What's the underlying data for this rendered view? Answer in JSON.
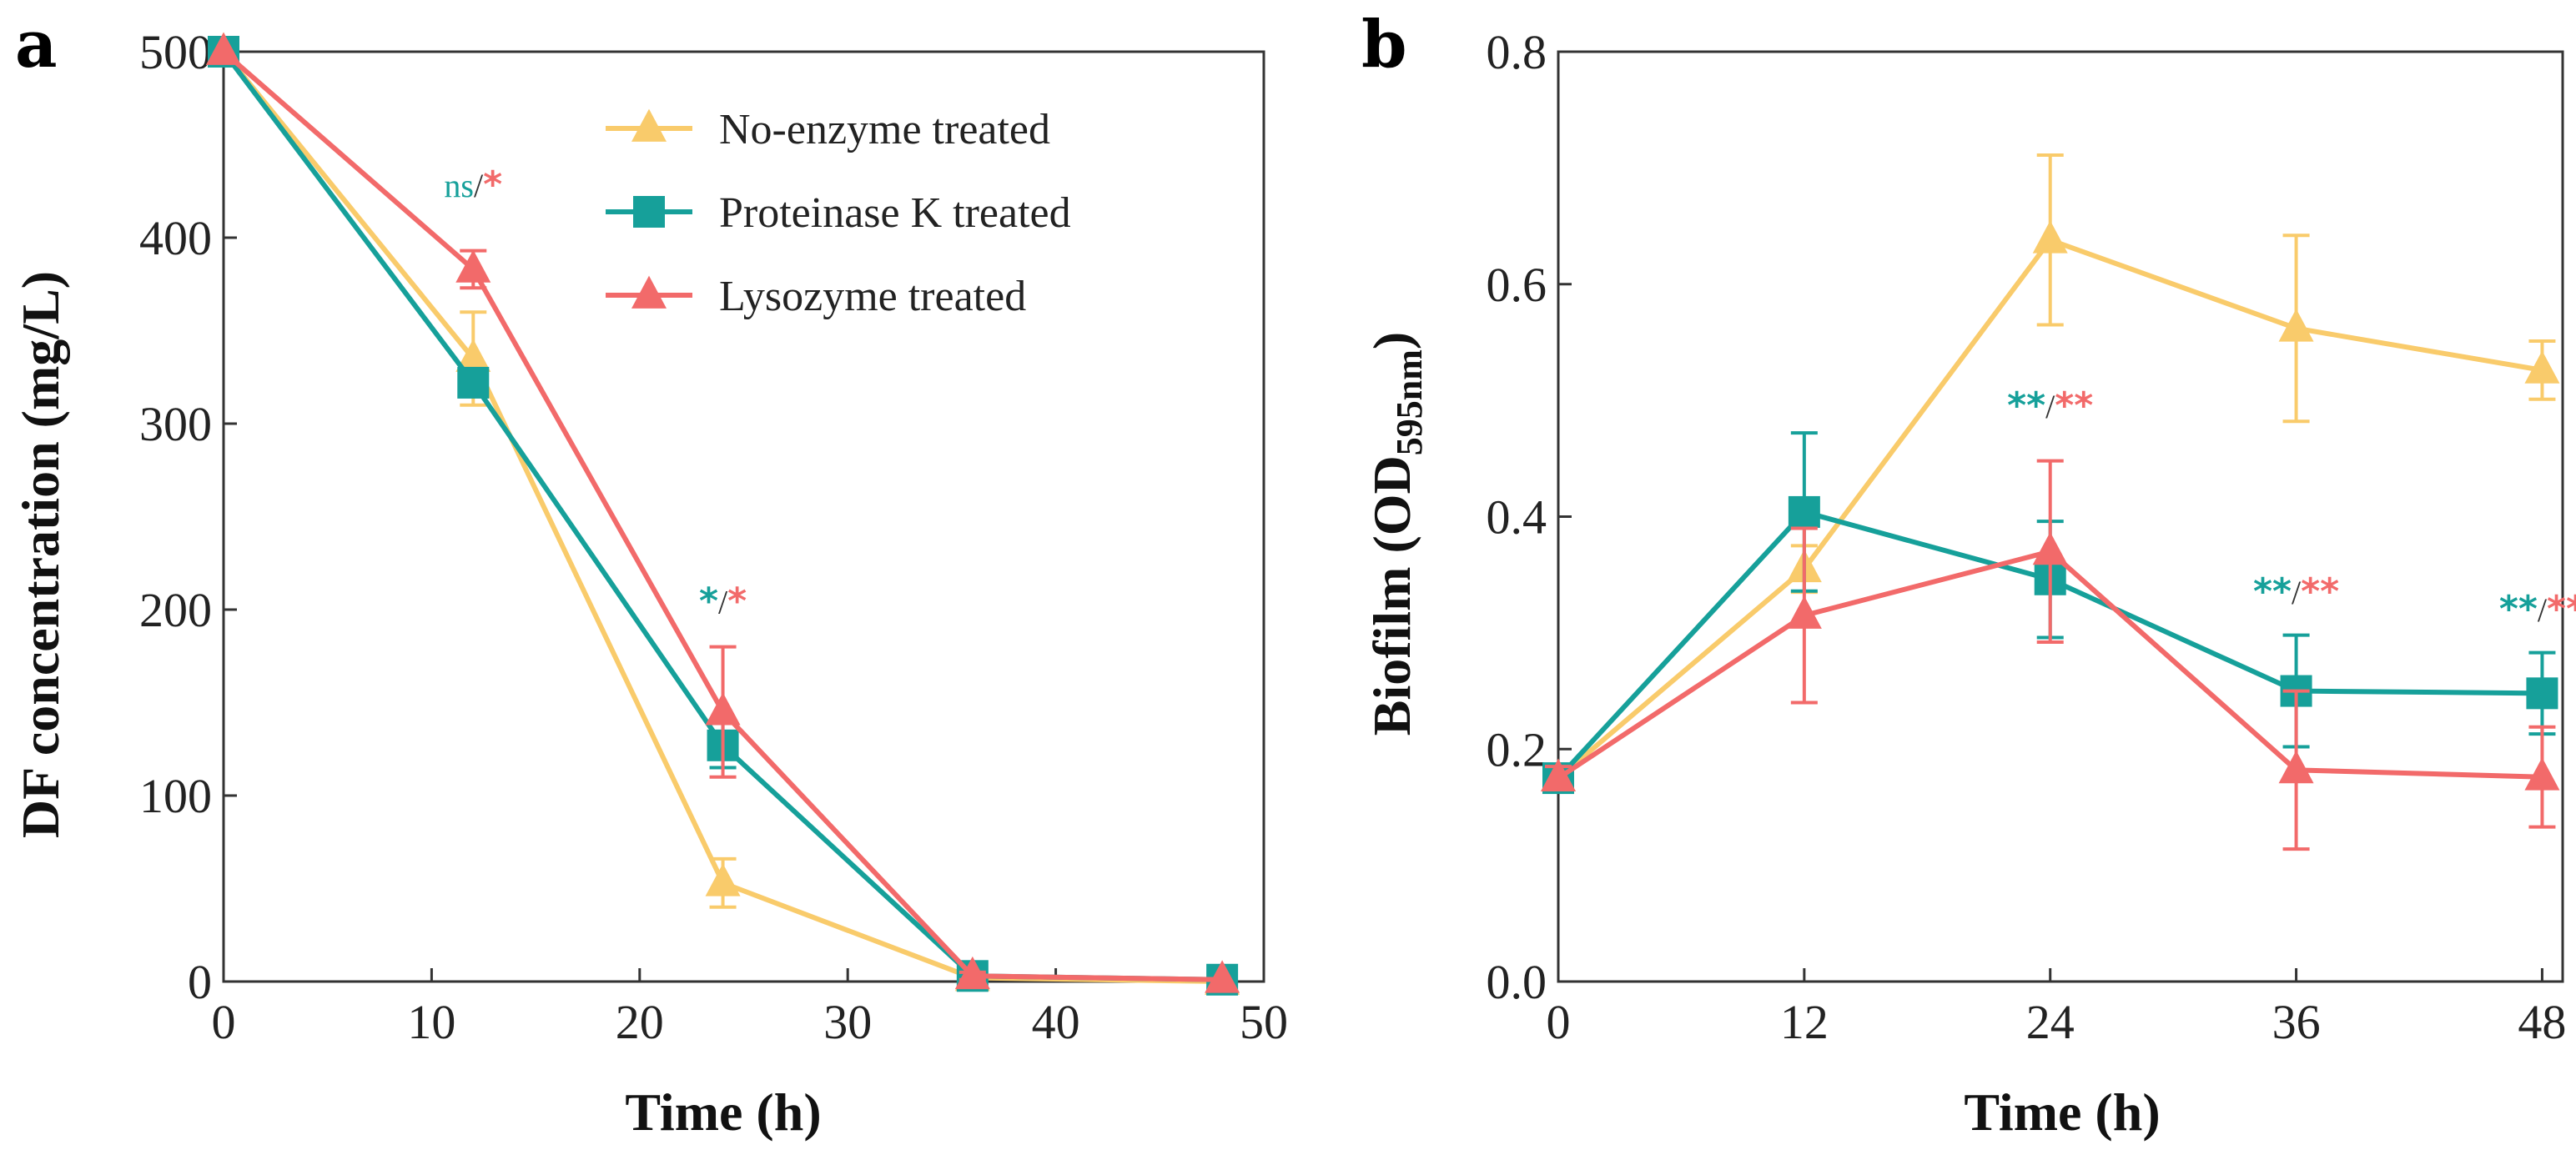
{
  "colors": {
    "no_enzyme": "#F9CB6B",
    "proteinase_k": "#16A09A",
    "lysozyme": "#F26A6A",
    "axis": "#333333"
  },
  "chart_data": [
    {
      "panel": "a",
      "type": "line",
      "xlabel": "Time (h)",
      "ylabel": "DF concentration (mg/L)",
      "xlim": [
        0,
        50
      ],
      "ylim": [
        0,
        500
      ],
      "xticks": [
        0,
        10,
        20,
        30,
        40,
        50
      ],
      "yticks": [
        0,
        100,
        200,
        300,
        400,
        500
      ],
      "legend_position": "top-right",
      "series": [
        {
          "name": "No-enzyme treated",
          "marker": "triangle",
          "color_key": "no_enzyme",
          "x": [
            0,
            12,
            24,
            36,
            48
          ],
          "y": [
            500,
            335,
            53,
            2,
            0
          ],
          "err": [
            0,
            25,
            13,
            2,
            0
          ]
        },
        {
          "name": "Proteinase K treated",
          "marker": "square",
          "color_key": "proteinase_k",
          "x": [
            0,
            12,
            24,
            36,
            48
          ],
          "y": [
            500,
            322,
            127,
            3,
            1
          ],
          "err": [
            0,
            5,
            12,
            2,
            0
          ]
        },
        {
          "name": "Lysozyme treated",
          "marker": "triangle",
          "color_key": "lysozyme",
          "x": [
            0,
            12,
            24,
            36,
            48
          ],
          "y": [
            500,
            383,
            145,
            3,
            1
          ],
          "err": [
            0,
            10,
            35,
            2,
            0
          ]
        }
      ],
      "annotations": [
        {
          "x": 12,
          "y": 422,
          "parts": [
            {
              "text": "ns",
              "color_key": "proteinase_k",
              "kind": "small"
            },
            {
              "text": "/",
              "color_key": "axis",
              "kind": "small"
            },
            {
              "text": "*",
              "color_key": "lysozyme",
              "kind": "star"
            }
          ]
        },
        {
          "x": 24,
          "y": 198,
          "parts": [
            {
              "text": "*",
              "color_key": "proteinase_k",
              "kind": "star"
            },
            {
              "text": "/",
              "color_key": "axis",
              "kind": "small"
            },
            {
              "text": "*",
              "color_key": "lysozyme",
              "kind": "star"
            }
          ]
        }
      ]
    },
    {
      "panel": "b",
      "type": "line",
      "xlabel": "Time (h)",
      "ylabel": "Biofilm (OD",
      "ylabel_sub": "595nm",
      "ylabel_end": ")",
      "xlim": [
        0,
        49
      ],
      "ylim": [
        0,
        0.8
      ],
      "xticks": [
        0,
        12,
        24,
        36,
        48
      ],
      "yticks": [
        "0.0",
        "0.2",
        "0.4",
        "0.6",
        "0.8"
      ],
      "series": [
        {
          "name": "No-enzyme treated",
          "marker": "triangle",
          "color_key": "no_enzyme",
          "x": [
            0,
            12,
            24,
            36,
            48
          ],
          "y": [
            0.175,
            0.355,
            0.638,
            0.562,
            0.526
          ],
          "err": [
            0.01,
            0.02,
            0.073,
            0.08,
            0.025
          ]
        },
        {
          "name": "Proteinase K treated",
          "marker": "square",
          "color_key": "proteinase_k",
          "x": [
            0,
            12,
            24,
            36,
            48
          ],
          "y": [
            0.175,
            0.404,
            0.346,
            0.25,
            0.248
          ],
          "err": [
            0.01,
            0.068,
            0.05,
            0.048,
            0.035
          ]
        },
        {
          "name": "Lysozyme treated",
          "marker": "triangle",
          "color_key": "lysozyme",
          "x": [
            0,
            12,
            24,
            36,
            48
          ],
          "y": [
            0.175,
            0.315,
            0.37,
            0.182,
            0.176
          ],
          "err": [
            0.01,
            0.075,
            0.078,
            0.068,
            0.043
          ]
        }
      ],
      "annotations": [
        {
          "x": 24,
          "y": 0.485,
          "parts": [
            {
              "text": "**",
              "color_key": "proteinase_k",
              "kind": "star"
            },
            {
              "text": "/",
              "color_key": "axis",
              "kind": "small"
            },
            {
              "text": "**",
              "color_key": "lysozyme",
              "kind": "star"
            }
          ]
        },
        {
          "x": 36,
          "y": 0.325,
          "parts": [
            {
              "text": "**",
              "color_key": "proteinase_k",
              "kind": "star"
            },
            {
              "text": "/",
              "color_key": "axis",
              "kind": "small"
            },
            {
              "text": "**",
              "color_key": "lysozyme",
              "kind": "star"
            }
          ]
        },
        {
          "x": 48,
          "y": 0.31,
          "parts": [
            {
              "text": "**",
              "color_key": "proteinase_k",
              "kind": "star"
            },
            {
              "text": "/",
              "color_key": "axis",
              "kind": "small"
            },
            {
              "text": "**",
              "color_key": "lysozyme",
              "kind": "star"
            }
          ]
        }
      ]
    }
  ]
}
